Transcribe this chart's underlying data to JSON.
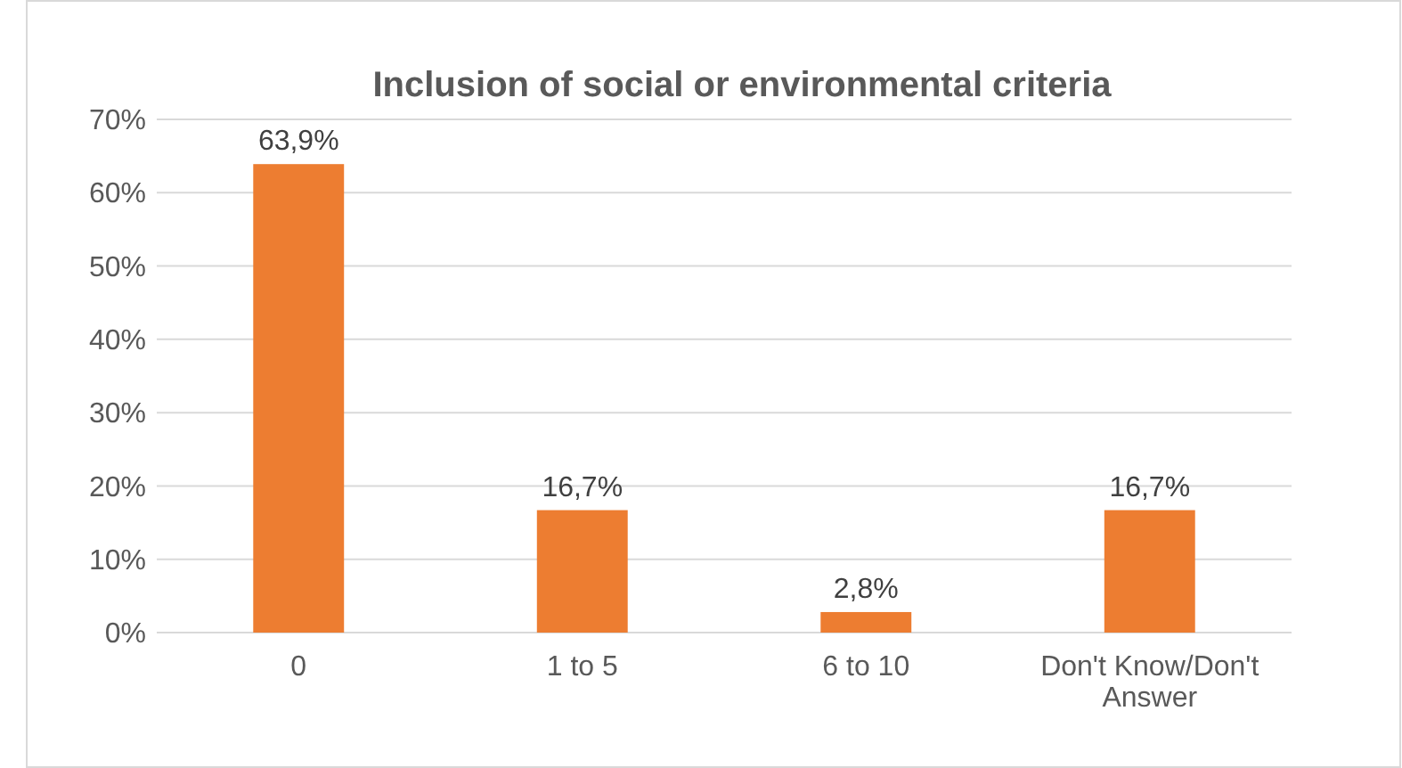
{
  "chart_data": {
    "type": "bar",
    "title": "Inclusion of social or environmental criteria",
    "categories": [
      "0",
      "1 to 5",
      "6 to 10",
      "Don't Know/Don't Answer"
    ],
    "values": [
      63.9,
      16.7,
      2.8,
      16.7
    ],
    "color": "#ed7d31",
    "value_labels": [
      "63,9%",
      "16,7%",
      "2,8%",
      "16,7%"
    ],
    "ylim": [
      0,
      70
    ],
    "yticks": [
      {
        "value": 0,
        "label": "0%"
      },
      {
        "value": 10,
        "label": "10%"
      },
      {
        "value": 20,
        "label": "20%"
      },
      {
        "value": 30,
        "label": "30%"
      },
      {
        "value": 40,
        "label": "40%"
      },
      {
        "value": 50,
        "label": "50%"
      },
      {
        "value": 60,
        "label": "60%"
      },
      {
        "value": 70,
        "label": "70%"
      }
    ],
    "grid": "y"
  }
}
